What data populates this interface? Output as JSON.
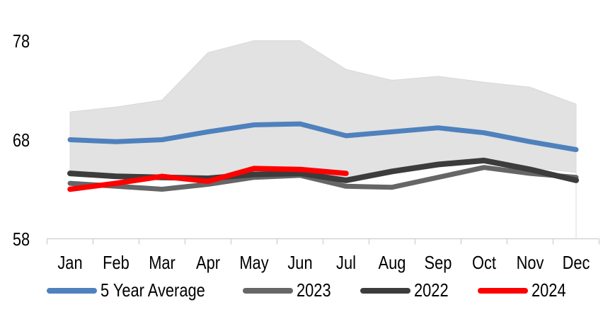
{
  "chart_data": {
    "type": "line",
    "title": "",
    "categories": [
      "Jan",
      "Feb",
      "Mar",
      "Apr",
      "May",
      "Jun",
      "Jul",
      "Aug",
      "Sep",
      "Oct",
      "Nov",
      "Dec"
    ],
    "y_ticks": [
      78,
      68,
      58
    ],
    "ylim": [
      58,
      78
    ],
    "grid": false,
    "legend_position": "bottom",
    "axis_color": "#D5D5D5",
    "dropline_color": "#DCDCDC",
    "band": {
      "name": "5 year min-max range",
      "fill": "#E2E2E2",
      "edge": "#D8D8D8",
      "high": [
        70.8,
        71.3,
        72.0,
        76.8,
        78.0,
        78.0,
        75.1,
        74.0,
        74.4,
        73.8,
        73.3,
        71.6
      ],
      "low": [
        64.6,
        64.3,
        64.2,
        64.2,
        64.6,
        64.6,
        64.0,
        64.8,
        65.5,
        65.9,
        65.2,
        64.7
      ]
    },
    "series": [
      {
        "name": "5 Year Average",
        "color": "#4E81BD",
        "values": [
          68.0,
          67.8,
          68.0,
          68.8,
          69.5,
          69.6,
          68.4,
          68.8,
          69.2,
          68.7,
          67.8,
          67.0
        ]
      },
      {
        "name": "2023",
        "color": "#666666",
        "values": [
          63.6,
          63.3,
          63.0,
          63.5,
          64.2,
          64.4,
          63.3,
          63.2,
          64.2,
          65.2,
          64.6,
          64.2
        ]
      },
      {
        "name": "2022",
        "color": "#3C3C3C",
        "values": [
          64.6,
          64.3,
          64.2,
          64.1,
          64.5,
          64.6,
          63.9,
          64.8,
          65.5,
          65.9,
          65.0,
          63.9
        ]
      },
      {
        "name": "2024",
        "color": "#FF0000",
        "values": [
          63.0,
          63.6,
          64.3,
          63.8,
          65.1,
          65.0,
          64.6,
          null,
          null,
          null,
          null,
          null
        ]
      }
    ]
  }
}
